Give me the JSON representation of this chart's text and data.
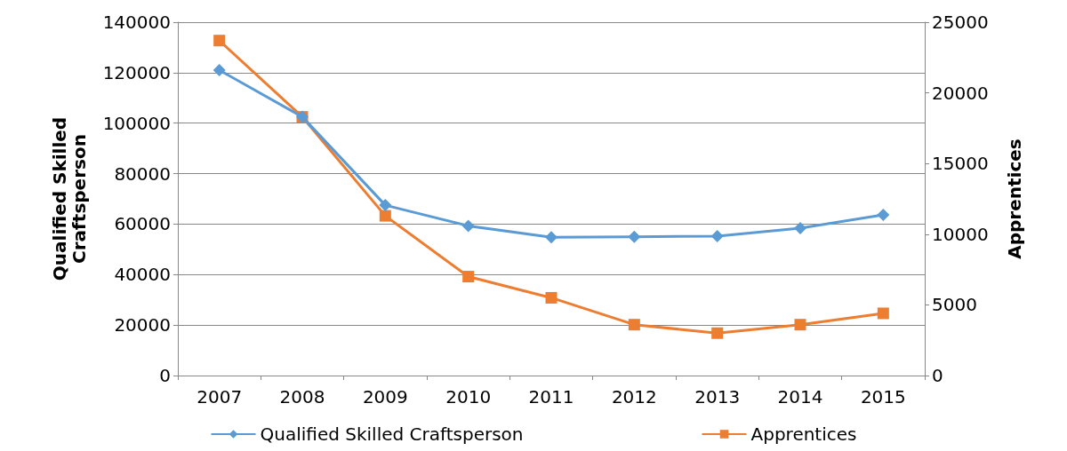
{
  "chart_data": {
    "type": "line",
    "ylabel": "Qualified Skilled\nCraftsperson",
    "y2label": "Apprentices",
    "categories": [
      "2007",
      "2008",
      "2009",
      "2010",
      "2011",
      "2012",
      "2013",
      "2014",
      "2015"
    ],
    "series": [
      {
        "name": "Qualified Skilled Craftsperson",
        "color": "#5b9bd5",
        "marker": "diamond",
        "values": [
          121000,
          102500,
          67500,
          59300,
          54800,
          55000,
          55200,
          58400,
          63700
        ]
      },
      {
        "name": "Apprentices",
        "color": "#ed7d31",
        "marker": "square",
        "axis": "y2",
        "values": [
          23700,
          18300,
          11300,
          7000,
          5500,
          3600,
          3000,
          3600,
          4400
        ]
      }
    ],
    "ylim": [
      0,
      140000
    ],
    "yticks": [
      0,
      20000,
      40000,
      60000,
      80000,
      100000,
      120000,
      140000
    ],
    "y2lim": [
      0,
      25000
    ],
    "y2ticks": [
      0,
      5000,
      10000,
      15000,
      20000,
      25000
    ],
    "grid": "y",
    "legend": "bottom",
    "line_style": "solid"
  }
}
